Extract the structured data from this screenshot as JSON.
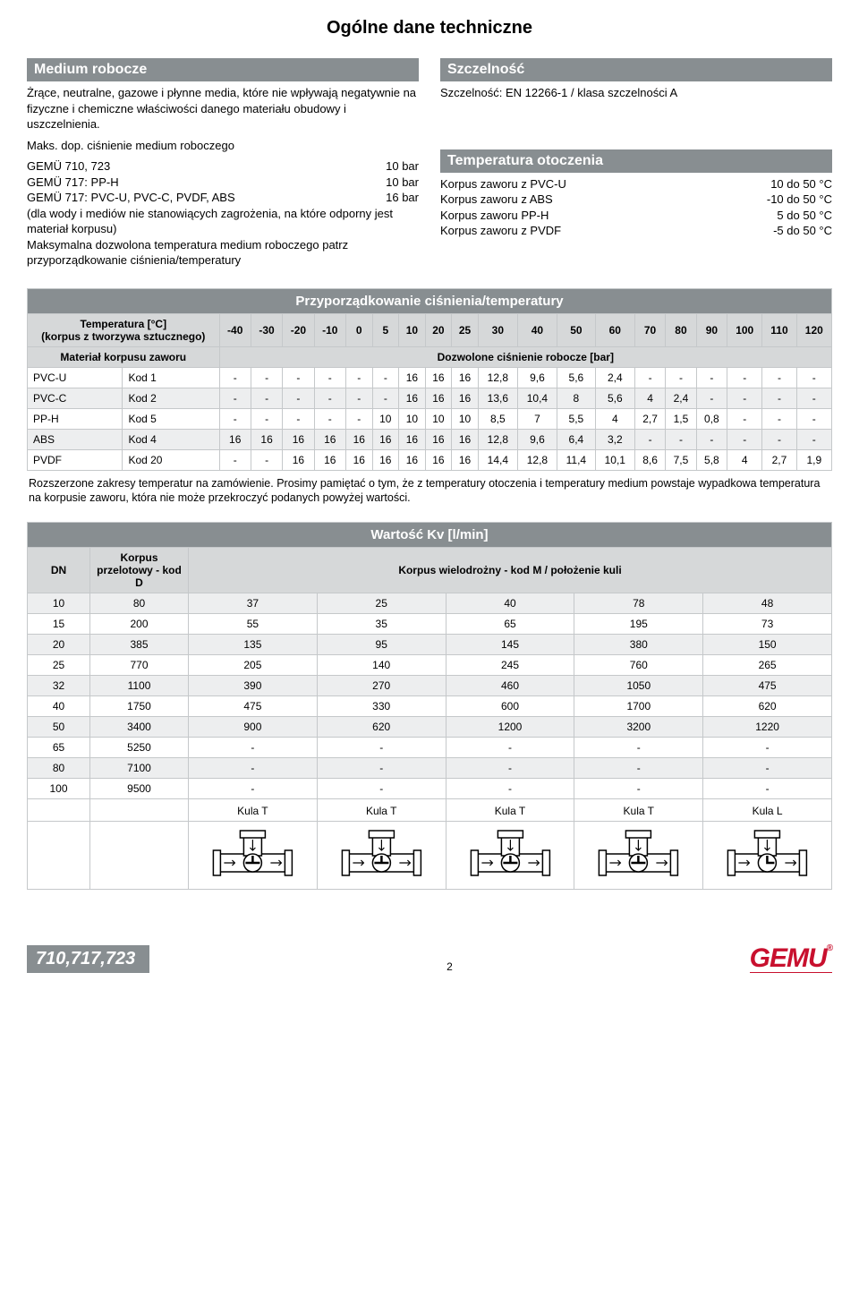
{
  "page": {
    "title": "Ogólne dane techniczne",
    "footer_code": "710,717,723",
    "footer_page": "2",
    "footer_logo": "GEMU",
    "footer_reg": "®"
  },
  "medium": {
    "header": "Medium robocze",
    "body": "Żrące, neutralne, gazowe i płynne media, które nie wpływają negatywnie na fizyczne i chemiczne właściwości danego materiału obudowy i uszczelnienia.",
    "subhead": "Maks. dop. ciśnienie medium roboczego",
    "rows": [
      {
        "name": "GEMÜ 710, 723",
        "val": "10 bar"
      },
      {
        "name": "GEMÜ 717: PP-H",
        "val": "10 bar"
      },
      {
        "name": "GEMÜ 717: PVC-U, PVC-C, PVDF, ABS",
        "val": "16 bar"
      }
    ],
    "note1": "(dla wody i mediów nie stanowiących zagrożenia, na które odporny jest materiał korpusu)",
    "note2": "Maksymalna dozwolona temperatura medium roboczego patrz przyporządkowanie ciśnienia/temperatury"
  },
  "tightness": {
    "header": "Szczelność",
    "body": "Szczelność: EN 12266-1 / klasa szczelności A"
  },
  "ambient": {
    "header": "Temperatura otoczenia",
    "rows": [
      {
        "name": "Korpus zaworu z PVC-U",
        "val": "10 do 50 °C"
      },
      {
        "name": "Korpus zaworu z ABS",
        "val": "-10 do 50 °C"
      },
      {
        "name": "Korpus zaworu PP-H",
        "val": "5 do 50 °C"
      },
      {
        "name": "Korpus zaworu z PVDF",
        "val": "-5 do 50 °C"
      }
    ]
  },
  "pt_table": {
    "title": "Przyporządkowanie ciśnienia/temperatury",
    "left1": "Temperatura [°C]\n(korpus z tworzywa sztucznego)",
    "left2": "Materiał korpusu zaworu",
    "pressure_label": "Dozwolone ciśnienie robocze [bar]",
    "temps": [
      "-40",
      "-30",
      "-20",
      "-10",
      "0",
      "5",
      "10",
      "20",
      "25",
      "30",
      "40",
      "50",
      "60",
      "70",
      "80",
      "90",
      "100",
      "110",
      "120"
    ],
    "rows": [
      {
        "mat": "PVC-U",
        "kod": "Kod 1",
        "vals": [
          "-",
          "-",
          "-",
          "-",
          "-",
          "-",
          "16",
          "16",
          "16",
          "12,8",
          "9,6",
          "5,6",
          "2,4",
          "-",
          "-",
          "-",
          "-",
          "-",
          "-"
        ]
      },
      {
        "mat": "PVC-C",
        "kod": "Kod 2",
        "vals": [
          "-",
          "-",
          "-",
          "-",
          "-",
          "-",
          "16",
          "16",
          "16",
          "13,6",
          "10,4",
          "8",
          "5,6",
          "4",
          "2,4",
          "-",
          "-",
          "-",
          "-"
        ]
      },
      {
        "mat": "PP-H",
        "kod": "Kod 5",
        "vals": [
          "-",
          "-",
          "-",
          "-",
          "-",
          "10",
          "10",
          "10",
          "10",
          "8,5",
          "7",
          "5,5",
          "4",
          "2,7",
          "1,5",
          "0,8",
          "-",
          "-",
          "-"
        ]
      },
      {
        "mat": "ABS",
        "kod": "Kod 4",
        "vals": [
          "16",
          "16",
          "16",
          "16",
          "16",
          "16",
          "16",
          "16",
          "16",
          "12,8",
          "9,6",
          "6,4",
          "3,2",
          "-",
          "-",
          "-",
          "-",
          "-",
          "-"
        ]
      },
      {
        "mat": "PVDF",
        "kod": "Kod 20",
        "vals": [
          "-",
          "-",
          "16",
          "16",
          "16",
          "16",
          "16",
          "16",
          "16",
          "14,4",
          "12,8",
          "11,4",
          "10,1",
          "8,6",
          "7,5",
          "5,8",
          "4",
          "2,7",
          "1,9"
        ]
      }
    ],
    "footnote": "Rozszerzone zakresy temperatur na zamówienie. Prosimy pamiętać o tym, że z temperatury otoczenia i temperatury medium powstaje wypadkowa temperatura na korpusie zaworu, która nie może przekroczyć podanych powyżej wartości."
  },
  "kv_table": {
    "title": "Wartość Kv [l/min]",
    "dn_label": "DN",
    "korpus_label": "Korpus przelotowy - kod D",
    "multi_label": "Korpus wielodrożny - kod M / położenie kuli",
    "rows": [
      {
        "dn": "10",
        "d": "80",
        "m": [
          "37",
          "25",
          "40",
          "78",
          "48"
        ]
      },
      {
        "dn": "15",
        "d": "200",
        "m": [
          "55",
          "35",
          "65",
          "195",
          "73"
        ]
      },
      {
        "dn": "20",
        "d": "385",
        "m": [
          "135",
          "95",
          "145",
          "380",
          "150"
        ]
      },
      {
        "dn": "25",
        "d": "770",
        "m": [
          "205",
          "140",
          "245",
          "760",
          "265"
        ]
      },
      {
        "dn": "32",
        "d": "1100",
        "m": [
          "390",
          "270",
          "460",
          "1050",
          "475"
        ]
      },
      {
        "dn": "40",
        "d": "1750",
        "m": [
          "475",
          "330",
          "600",
          "1700",
          "620"
        ]
      },
      {
        "dn": "50",
        "d": "3400",
        "m": [
          "900",
          "620",
          "1200",
          "3200",
          "1220"
        ]
      },
      {
        "dn": "65",
        "d": "5250",
        "m": [
          "-",
          "-",
          "-",
          "-",
          "-"
        ]
      },
      {
        "dn": "80",
        "d": "7100",
        "m": [
          "-",
          "-",
          "-",
          "-",
          "-"
        ]
      },
      {
        "dn": "100",
        "d": "9500",
        "m": [
          "-",
          "-",
          "-",
          "-",
          "-"
        ]
      }
    ],
    "valve_labels": [
      "Kula T",
      "Kula T",
      "Kula T",
      "Kula T",
      "Kula L"
    ]
  },
  "colors": {
    "header_bg": "#888e91",
    "grey_row": "#edeeef",
    "cell_border": "#c5c8ca",
    "brand_red": "#c8102e"
  }
}
